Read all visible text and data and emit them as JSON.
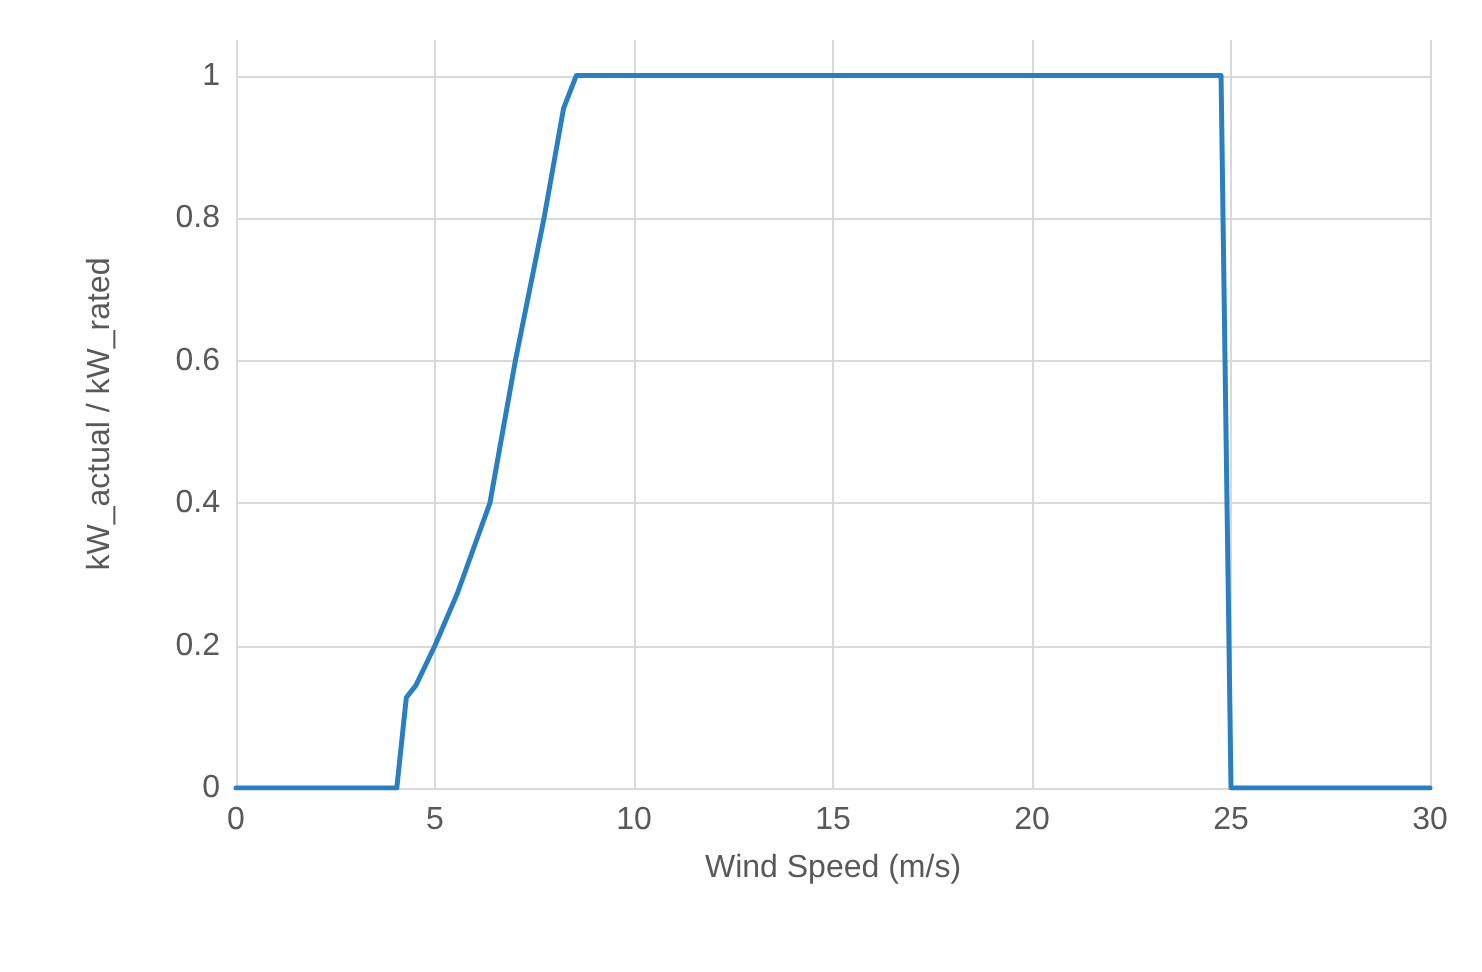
{
  "chart_data": {
    "type": "line",
    "xlabel": "Wind Speed (m/s)",
    "ylabel": "kW_actual / kW_rated",
    "series": [
      {
        "color": "#2a7fc1",
        "x": [
          0,
          4.04,
          4.28,
          4.52,
          5,
          5.56,
          6.38,
          7.02,
          7.74,
          8.23,
          8.55,
          24.75,
          25,
          30
        ],
        "values": [
          0,
          0,
          0.127,
          0.144,
          0.2,
          0.273,
          0.4,
          0.6,
          0.8,
          0.954,
          1,
          1,
          0,
          0
        ]
      }
    ],
    "xlim": [
      0,
      30
    ],
    "xticks": [
      0,
      5,
      10,
      15,
      20,
      25,
      30
    ],
    "ylim": [
      0,
      1.05
    ],
    "yticks": [
      0,
      0.2,
      0.4,
      0.6,
      0.8,
      1
    ],
    "grid": true,
    "marker": "none",
    "line_style": "solid"
  }
}
